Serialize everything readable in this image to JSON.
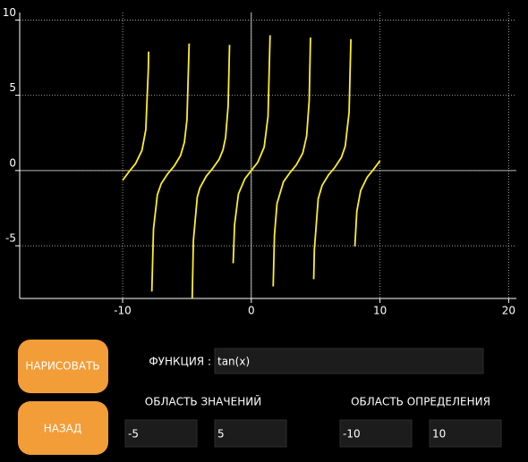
{
  "chart_data": {
    "type": "line",
    "x": [
      -10,
      -9.5,
      -9,
      -8.5,
      -8.2,
      -8,
      -7.98,
      null,
      -7.73,
      -7.6,
      -7.3,
      -7,
      -6.5,
      -6,
      -5.5,
      -5.2,
      -5,
      -4.83,
      null,
      -4.6,
      -4.5,
      -4.2,
      -4,
      -3.5,
      -3,
      -2.5,
      -2.2,
      -2,
      -1.8,
      -1.69,
      null,
      -1.41,
      -1.3,
      -1,
      -0.5,
      0,
      0.5,
      1,
      1.3,
      1.46,
      null,
      1.7,
      1.8,
      2,
      2.5,
      3,
      3.5,
      4,
      4.3,
      4.5,
      4.6,
      null,
      4.85,
      4.9,
      5.2,
      5.5,
      6,
      6.5,
      7,
      7.3,
      7.6,
      7.74,
      null,
      8.05,
      8.2,
      8.5,
      9,
      9.5,
      10
    ],
    "series": [
      {
        "color": "#ffee22",
        "values": [
          -0.648,
          -0.075,
          0.453,
          1.33,
          2.71,
          6.8,
          7.9,
          null,
          -8.04,
          -3.87,
          -1.61,
          -0.871,
          -0.22,
          0.291,
          0.993,
          1.87,
          3.38,
          8.44,
          null,
          -8.8,
          -4.64,
          -1.77,
          -1.158,
          -0.374,
          0.143,
          0.747,
          1.374,
          2.185,
          4.29,
          8.35,
          null,
          -6.16,
          -3.6,
          -1.557,
          -0.546,
          0,
          0.546,
          1.557,
          3.6,
          8.99,
          null,
          -7.7,
          -4.29,
          -2.185,
          -0.747,
          -0.143,
          0.374,
          1.158,
          2.29,
          4.64,
          8.84,
          null,
          -7.22,
          -5.27,
          -1.87,
          -0.993,
          -0.291,
          0.22,
          0.871,
          1.61,
          3.87,
          8.73,
          null,
          -5.04,
          -2.71,
          -1.33,
          -0.453,
          0.075,
          0.648
        ]
      }
    ],
    "xlim": [
      -18,
      20.6
    ],
    "ylim": [
      -8.5,
      10.5
    ],
    "xticks": [
      -10,
      0,
      10,
      20
    ],
    "yticks": [
      -5,
      0,
      5,
      10
    ],
    "grid": true
  },
  "controls": {
    "draw_button": "НАРИСОВАТЬ",
    "back_button": "НАЗАД",
    "function_label": "ФУНКЦИЯ :",
    "function_value": "tan(x)",
    "range_label": "ОБЛАСТЬ ЗНАЧЕНИЙ",
    "range_min": "-5",
    "range_max": "5",
    "domain_label": "ОБЛАСТЬ ОПРЕДЕЛЕНИЯ",
    "domain_min": "-10",
    "domain_max": "10"
  }
}
